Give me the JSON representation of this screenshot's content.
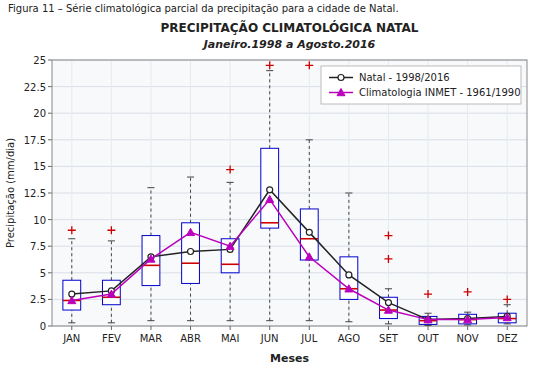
{
  "chart_data": {
    "type": "box",
    "title": "PRECIPITAÇÃO CLIMATOLÓGICA NATAL",
    "subtitle": "Janeiro.1998 a Agosto.2016",
    "annotations": [
      "Figura 11 – Série climatológica parcial da precipitação para a cidade de Natal."
    ],
    "xlabel": "Meses",
    "ylabel": "Precipitação (mm/dia)",
    "categories": [
      "JAN",
      "FEV",
      "MAR",
      "ABR",
      "MAI",
      "JUN",
      "JUL",
      "AGO",
      "SET",
      "OUT",
      "NOV",
      "DEZ"
    ],
    "boxes": {
      "color": "#0000cc",
      "median_color": "#cc0000",
      "q1": [
        1.5,
        2.0,
        3.8,
        4.0,
        5.0,
        9.2,
        6.2,
        2.5,
        0.7,
        0.15,
        0.2,
        0.3
      ],
      "median": [
        2.4,
        2.7,
        5.7,
        5.9,
        5.8,
        9.7,
        8.2,
        3.5,
        1.5,
        0.5,
        0.6,
        0.7
      ],
      "q3": [
        4.3,
        4.3,
        8.5,
        9.7,
        8.2,
        16.7,
        11.0,
        6.5,
        2.7,
        0.9,
        1.1,
        1.2
      ],
      "whisker_low": [
        0.3,
        0.3,
        0.5,
        0.5,
        0.5,
        0.5,
        0.5,
        0.4,
        0.2,
        0.05,
        0.1,
        0.2
      ],
      "whisker_high": [
        8.2,
        8.0,
        13.0,
        14.0,
        13.5,
        24.0,
        17.5,
        12.5,
        3.5,
        1.2,
        1.3,
        2.0
      ]
    },
    "outliers": {
      "color": "#cc0000",
      "marker": "plus",
      "points": [
        {
          "category": "JAN",
          "value": 9.0
        },
        {
          "category": "FEV",
          "value": 9.0
        },
        {
          "category": "MAI",
          "value": 14.7
        },
        {
          "category": "JUN",
          "value": 24.5
        },
        {
          "category": "JUL",
          "value": 24.5
        },
        {
          "category": "SET",
          "value": 8.5
        },
        {
          "category": "SET",
          "value": 6.3
        },
        {
          "category": "OUT",
          "value": 3.0
        },
        {
          "category": "NOV",
          "value": 3.2
        },
        {
          "category": "DEZ",
          "value": 2.5
        }
      ]
    },
    "series": [
      {
        "name": "Natal - 1998/2016",
        "type": "line",
        "color": "#222222",
        "marker": "circle",
        "values": [
          3.0,
          3.3,
          6.5,
          7.0,
          7.2,
          12.8,
          8.8,
          4.8,
          2.2,
          0.6,
          0.7,
          0.9
        ]
      },
      {
        "name": "Climatologia INMET - 1961/1990",
        "type": "line",
        "color": "#bb00bb",
        "marker": "triangle",
        "values": [
          2.4,
          3.0,
          6.3,
          8.8,
          7.5,
          11.9,
          6.5,
          3.5,
          1.5,
          0.6,
          0.6,
          0.8
        ]
      }
    ],
    "ylim": [
      0,
      25
    ],
    "yticks": [
      0,
      2.5,
      5,
      7.5,
      10,
      12.5,
      15,
      17.5,
      20,
      22.5,
      25
    ],
    "grid": true,
    "legend": "upper right"
  }
}
